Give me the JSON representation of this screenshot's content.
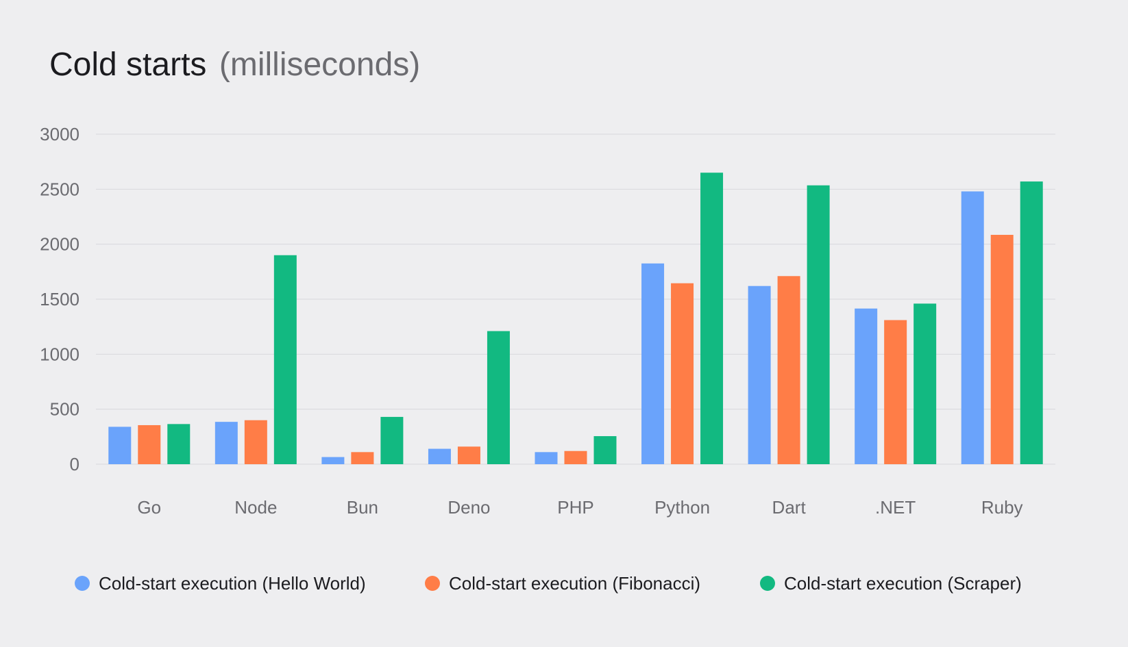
{
  "chart_data": {
    "type": "bar",
    "title": "Cold starts",
    "subtitle": "(milliseconds)",
    "xlabel": "",
    "ylabel": "",
    "ylim": [
      0,
      3000
    ],
    "yticks": [
      0,
      500,
      1000,
      1500,
      2000,
      2500,
      3000
    ],
    "grid": true,
    "legend_position": "bottom",
    "categories": [
      "Go",
      "Node",
      "Bun",
      "Deno",
      "PHP",
      "Python",
      "Dart",
      ".NET",
      "Ruby"
    ],
    "series": [
      {
        "name": "Cold-start execution (Hello World)",
        "color": "#6aa3fb",
        "values": [
          340,
          385,
          65,
          140,
          110,
          1825,
          1620,
          1415,
          2480
        ]
      },
      {
        "name": "Cold-start execution (Fibonacci)",
        "color": "#ff7d47",
        "values": [
          355,
          400,
          110,
          160,
          120,
          1645,
          1710,
          1310,
          2085
        ]
      },
      {
        "name": "Cold-start execution (Scraper)",
        "color": "#12b981",
        "values": [
          365,
          1900,
          430,
          1210,
          255,
          2650,
          2535,
          1460,
          2570
        ]
      }
    ]
  }
}
